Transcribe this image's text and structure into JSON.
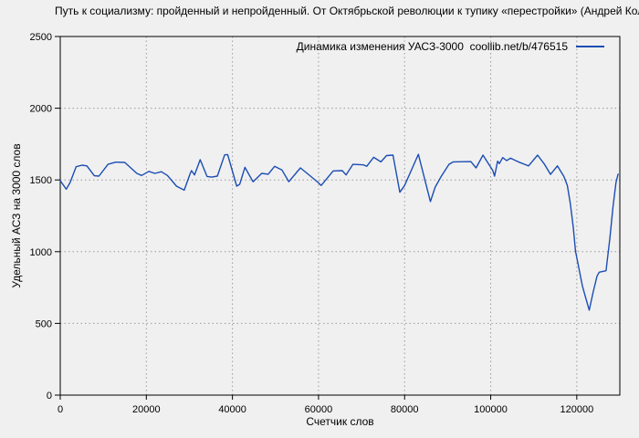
{
  "page": {
    "background": "#f0f0f0"
  },
  "chart_data": {
    "type": "line",
    "title": "Путь к социализму: пройденный и непройденный. От Октябрьской революции к тупику «перестройки» (Андрей Колганов)",
    "legend": {
      "label": "Динамика изменения УАСЗ-3000  coollib.net/b/476515",
      "position": "top-right"
    },
    "xlabel": "Счетчик слов",
    "ylabel": "Удельный АСЗ на 3000 слов",
    "xlim": [
      0,
      130000
    ],
    "ylim": [
      0,
      2500
    ],
    "xticks": [
      0,
      20000,
      40000,
      60000,
      80000,
      100000,
      120000
    ],
    "yticks": [
      0,
      500,
      1000,
      1500,
      2000,
      2500
    ],
    "grid": "dotted",
    "colors": {
      "line": "#1b4db3",
      "grid": "#9a9a9a",
      "frame": "#000000",
      "background": "#f0f0f0"
    },
    "series": [
      {
        "name": "Динамика изменения УАСЗ-3000",
        "points": [
          [
            0,
            1495
          ],
          [
            1400,
            1436
          ],
          [
            2300,
            1482
          ],
          [
            3700,
            1592
          ],
          [
            5100,
            1603
          ],
          [
            6200,
            1598
          ],
          [
            7900,
            1529
          ],
          [
            9000,
            1527
          ],
          [
            11100,
            1609
          ],
          [
            12900,
            1624
          ],
          [
            15000,
            1622
          ],
          [
            17800,
            1546
          ],
          [
            18900,
            1531
          ],
          [
            20600,
            1560
          ],
          [
            22000,
            1546
          ],
          [
            23500,
            1557
          ],
          [
            24900,
            1531
          ],
          [
            26300,
            1482
          ],
          [
            27000,
            1457
          ],
          [
            28800,
            1429
          ],
          [
            30200,
            1546
          ],
          [
            30500,
            1565
          ],
          [
            31200,
            1535
          ],
          [
            32500,
            1641
          ],
          [
            34100,
            1524
          ],
          [
            35200,
            1520
          ],
          [
            36500,
            1527
          ],
          [
            38200,
            1675
          ],
          [
            38900,
            1677
          ],
          [
            41000,
            1457
          ],
          [
            41700,
            1470
          ],
          [
            42900,
            1588
          ],
          [
            44800,
            1487
          ],
          [
            46800,
            1546
          ],
          [
            48300,
            1540
          ],
          [
            49800,
            1595
          ],
          [
            51500,
            1570
          ],
          [
            53100,
            1488
          ],
          [
            55800,
            1584
          ],
          [
            58000,
            1530
          ],
          [
            59900,
            1482
          ],
          [
            60600,
            1461
          ],
          [
            63400,
            1563
          ],
          [
            65500,
            1565
          ],
          [
            66400,
            1535
          ],
          [
            68000,
            1609
          ],
          [
            70500,
            1605
          ],
          [
            71200,
            1595
          ],
          [
            72800,
            1658
          ],
          [
            74500,
            1626
          ],
          [
            75800,
            1670
          ],
          [
            77300,
            1673
          ],
          [
            78900,
            1414
          ],
          [
            80000,
            1461
          ],
          [
            83200,
            1679
          ],
          [
            86000,
            1349
          ],
          [
            87100,
            1450
          ],
          [
            88500,
            1524
          ],
          [
            90300,
            1609
          ],
          [
            91300,
            1626
          ],
          [
            95400,
            1628
          ],
          [
            96600,
            1584
          ],
          [
            98200,
            1673
          ],
          [
            100500,
            1565
          ],
          [
            100900,
            1527
          ],
          [
            101600,
            1631
          ],
          [
            102000,
            1614
          ],
          [
            102800,
            1656
          ],
          [
            103700,
            1635
          ],
          [
            104600,
            1652
          ],
          [
            105800,
            1635
          ],
          [
            106900,
            1620
          ],
          [
            107900,
            1609
          ],
          [
            108800,
            1598
          ],
          [
            110900,
            1673
          ],
          [
            112500,
            1609
          ],
          [
            113900,
            1539
          ],
          [
            115500,
            1598
          ],
          [
            117000,
            1524
          ],
          [
            117800,
            1461
          ],
          [
            118500,
            1334
          ],
          [
            119200,
            1164
          ],
          [
            119700,
            1005
          ],
          [
            120600,
            867
          ],
          [
            121300,
            761
          ],
          [
            122100,
            676
          ],
          [
            122900,
            592
          ],
          [
            123800,
            719
          ],
          [
            124700,
            829
          ],
          [
            125200,
            857
          ],
          [
            126800,
            867
          ],
          [
            127700,
            1100
          ],
          [
            128400,
            1312
          ],
          [
            129100,
            1482
          ],
          [
            129600,
            1541
          ]
        ]
      }
    ]
  }
}
